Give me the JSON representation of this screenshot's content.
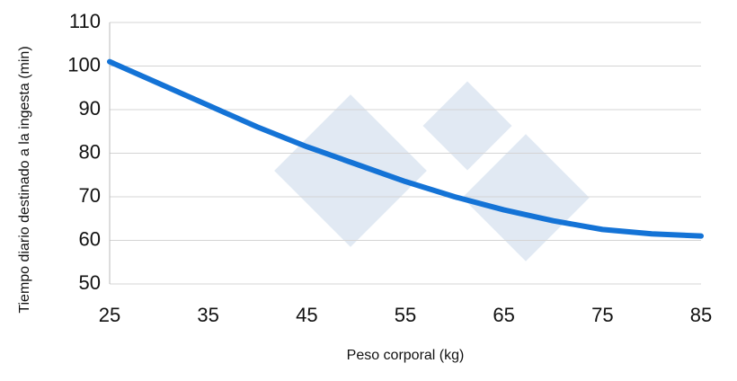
{
  "chart_data": {
    "type": "line",
    "x_label": "Peso corporal (kg)",
    "y_label": "Tiempo diario destinado a la ingesta (min)",
    "x": [
      25,
      30,
      35,
      40,
      45,
      50,
      55,
      60,
      65,
      70,
      75,
      80,
      85
    ],
    "series": [
      {
        "color": "#1473d6",
        "values": [
          101,
          96,
          91,
          86,
          81.5,
          77.5,
          73.5,
          70,
          67,
          64.5,
          62.5,
          61.5,
          61
        ]
      }
    ],
    "xlim": [
      25,
      85
    ],
    "xticks": [
      25,
      35,
      45,
      55,
      65,
      75,
      85
    ],
    "ylim": [
      50,
      110
    ],
    "yticks": [
      50,
      60,
      70,
      80,
      90,
      100,
      110
    ],
    "grid": true
  }
}
